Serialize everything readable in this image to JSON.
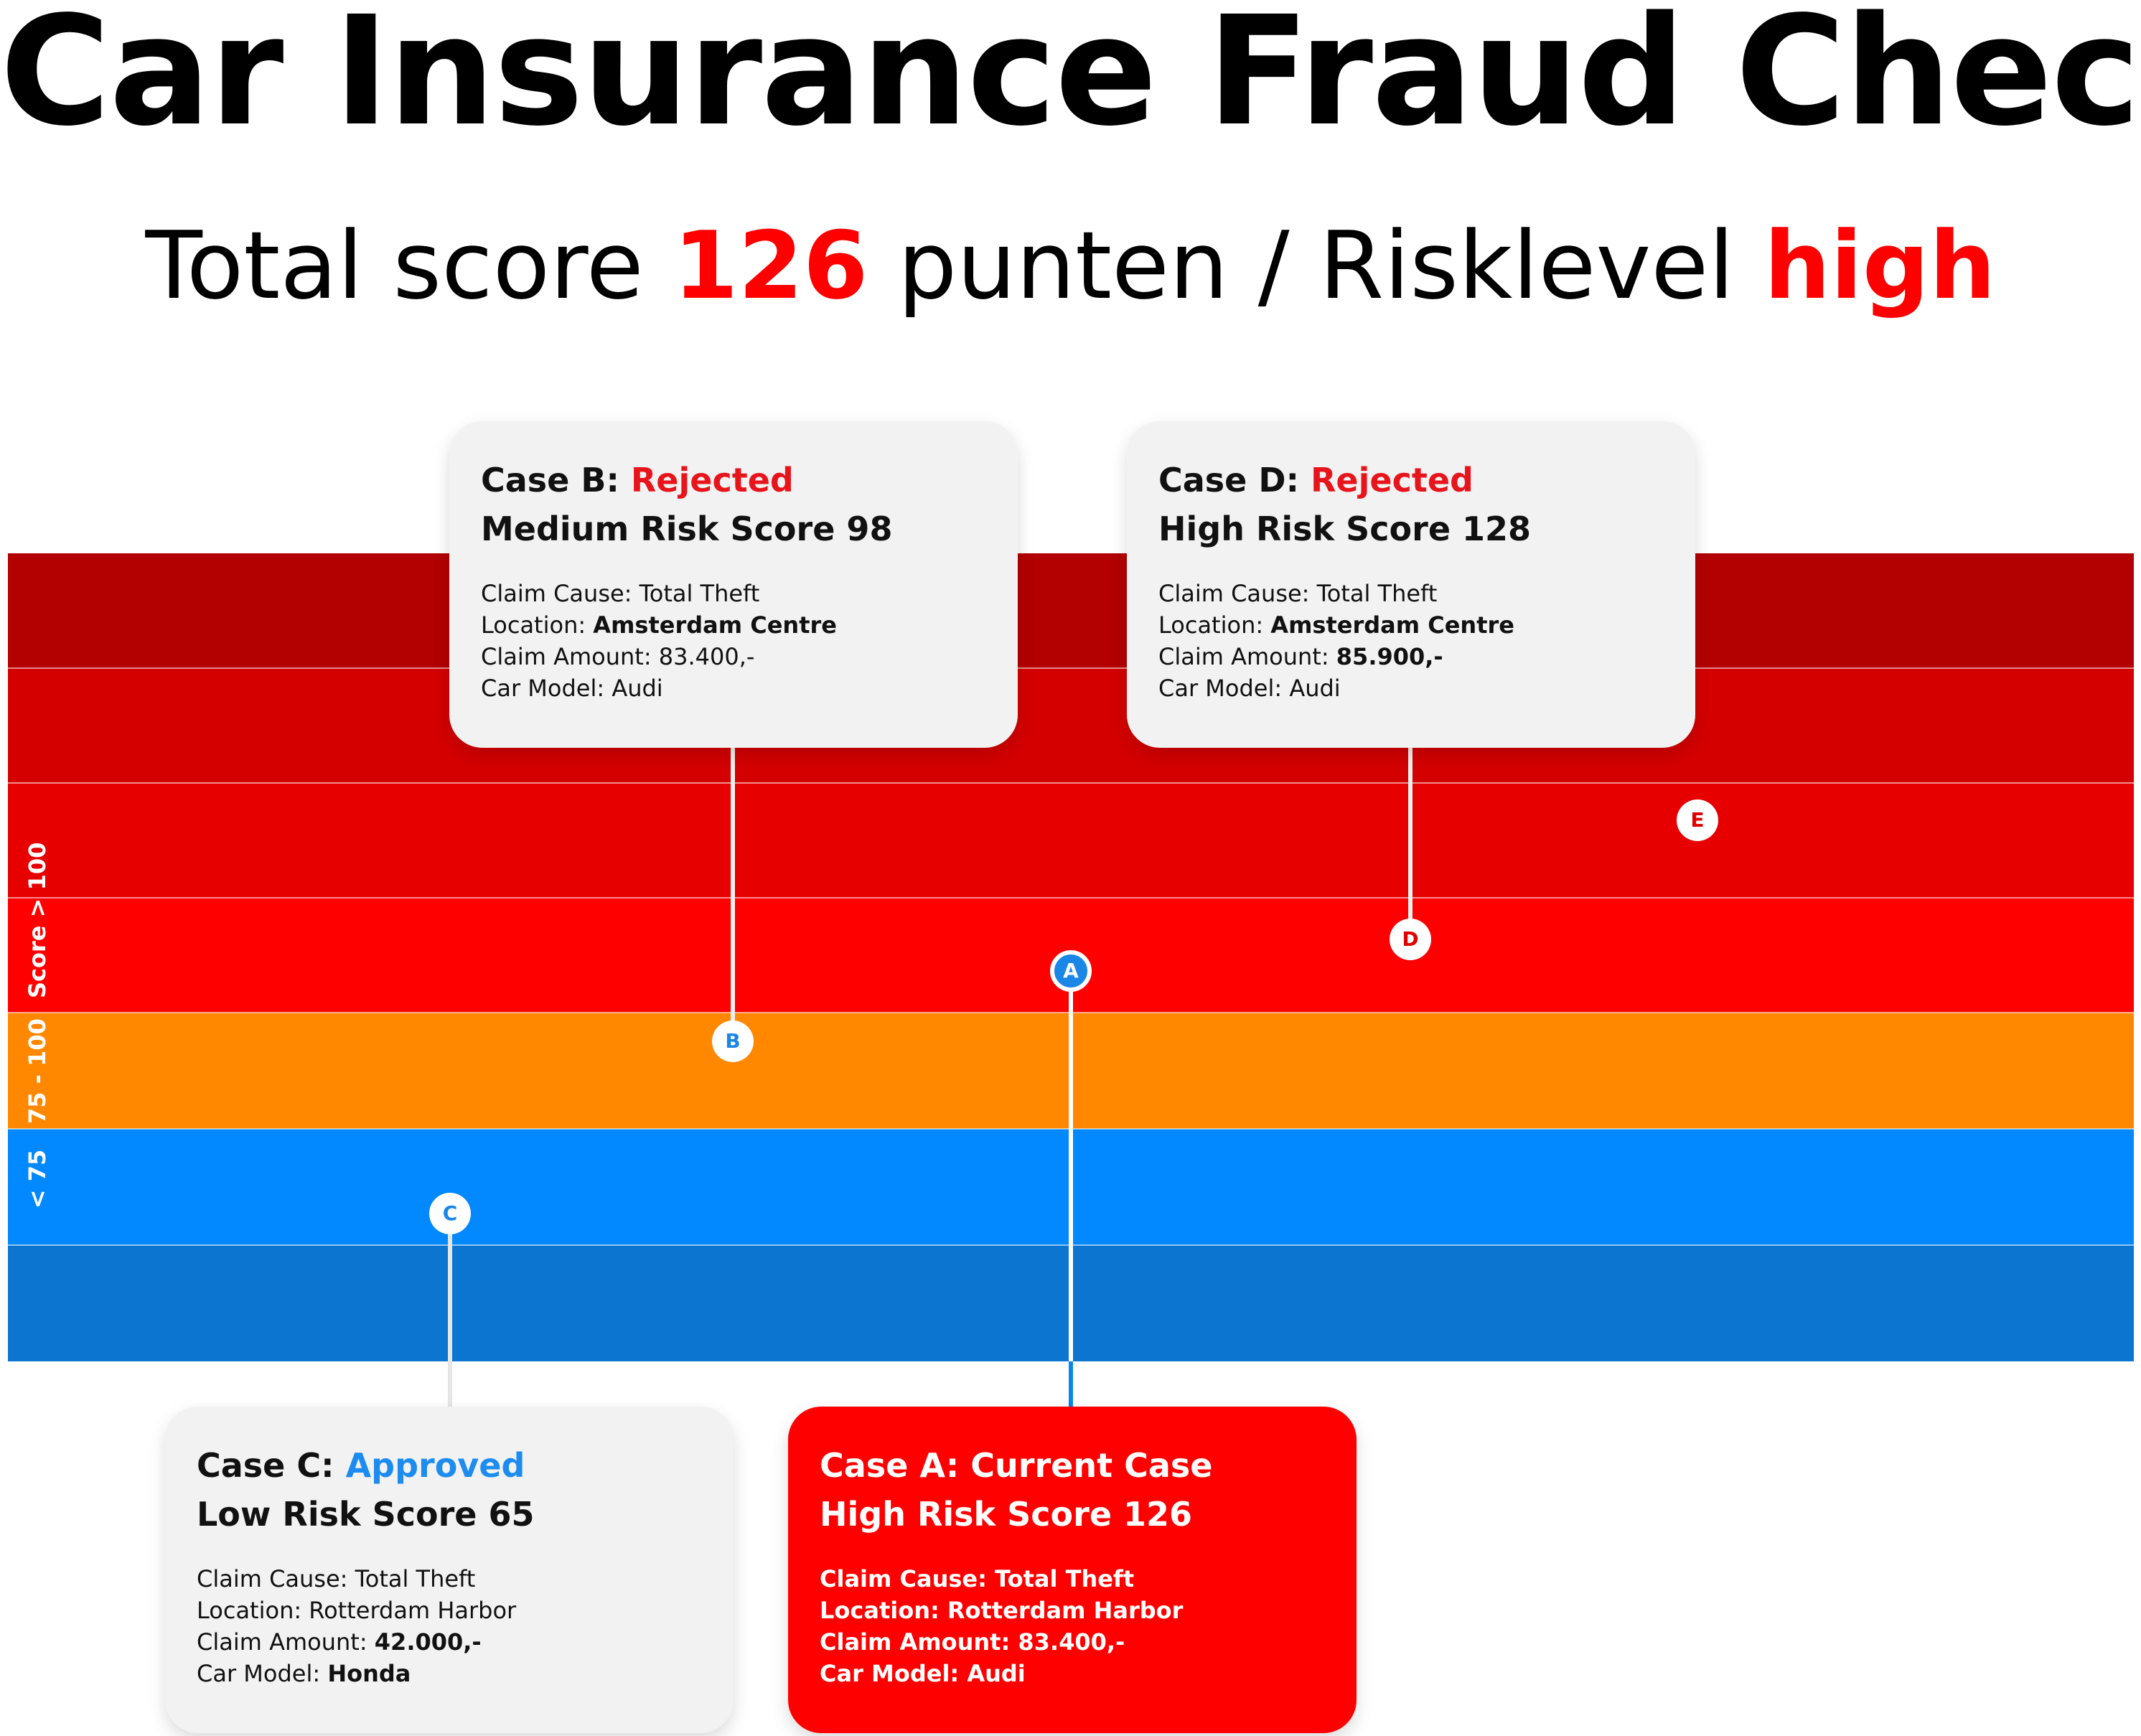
{
  "header": {
    "title": "Car Insurance Fraud Check",
    "total_prefix": "Total score",
    "total_score": "126",
    "total_unit": "punten / Risklevel",
    "risk_level": "high"
  },
  "bands": {
    "labels": {
      "high": "Score > 100",
      "medium": "75 - 100",
      "low": "< 75"
    },
    "colors": [
      "#b30000",
      "#d40000",
      "#e60000",
      "#ff0000",
      "#ff8800",
      "#0288ff",
      "#0b75d0"
    ]
  },
  "markers": {
    "a": "A",
    "b": "B",
    "c": "C",
    "d": "D",
    "e": "E"
  },
  "cases": {
    "b": {
      "title": "Case B:",
      "status": "Rejected",
      "risk": "Medium Risk Score 98",
      "cause_label": "Claim Cause:",
      "cause": "Total Theft",
      "location_label": "Location:",
      "location": "Amsterdam Centre",
      "amount_label": "Claim Amount:",
      "amount": "83.400,-",
      "model_label": "Car Model:",
      "model": "Audi"
    },
    "d": {
      "title": "Case D:",
      "status": "Rejected",
      "risk": "High Risk Score 128",
      "cause_label": "Claim Cause:",
      "cause": "Total Theft",
      "location_label": "Location:",
      "location": "Amsterdam Centre",
      "amount_label": "Claim Amount:",
      "amount": "85.900,-",
      "model_label": "Car Model:",
      "model": "Audi"
    },
    "c": {
      "title": "Case C:",
      "status": "Approved",
      "risk": "Low Risk Score 65",
      "cause_label": "Claim Cause:",
      "cause": "Total Theft",
      "location_label": "Location:",
      "location": "Rotterdam Harbor",
      "amount_label": "Claim Amount:",
      "amount": "42.000,-",
      "model_label": "Car Model:",
      "model": "Honda"
    },
    "a": {
      "title": "Case A: Current Case",
      "risk": "High Risk Score 126",
      "cause_label": "Claim Cause:",
      "cause": "Total Theft",
      "location_label": "Location:",
      "location": "Rotterdam Harbor",
      "amount_label": "Claim Amount:",
      "amount": "83.400,-",
      "model_label": "Car Model:",
      "model": "Audi"
    }
  },
  "colors": {
    "risk_red": "#ff0000",
    "status_red": "#e8141c",
    "status_blue": "#1c8cf0",
    "line_blue": "#0a86ea",
    "card_grey": "#f2f2f2"
  }
}
